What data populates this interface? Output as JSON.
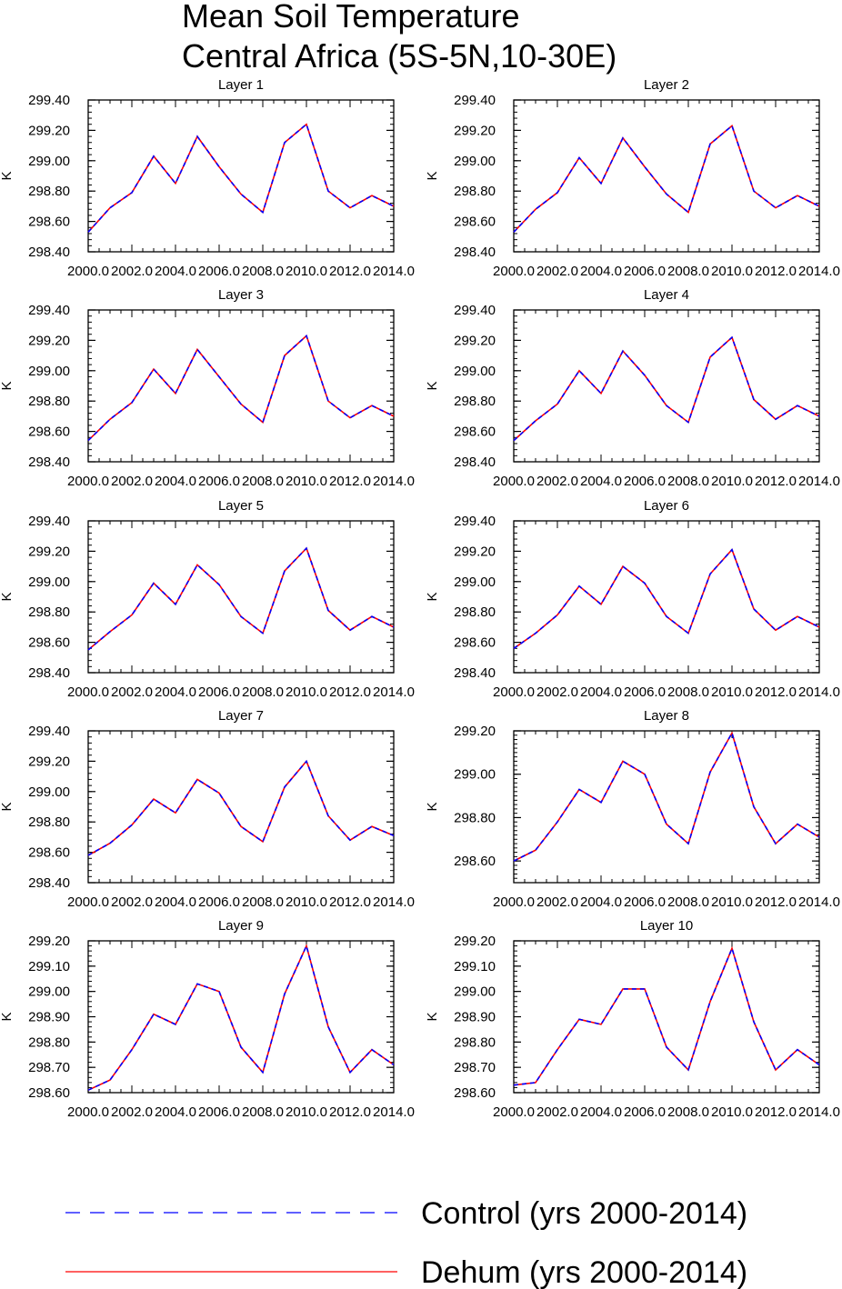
{
  "chart_data": {
    "type": "line",
    "title": [
      "Mean Soil Temperature",
      "Central Africa (5S-5N,10-30E)"
    ],
    "x": [
      2000,
      2001,
      2002,
      2003,
      2004,
      2005,
      2006,
      2007,
      2008,
      2009,
      2010,
      2011,
      2012,
      2013,
      2014
    ],
    "x_tick_labels": [
      "2000.0",
      "2002.0",
      "2004.0",
      "2006.0",
      "2008.0",
      "2010.0",
      "2012.0",
      "2014.0"
    ],
    "xlim": [
      2000,
      2014
    ],
    "series_styles": [
      {
        "name": "Control (yrs 2000-2014)",
        "color": "#0000ff",
        "dash": true
      },
      {
        "name": "Dehum (yrs 2000-2014)",
        "color": "#ff0000",
        "dash": false
      }
    ],
    "panels": [
      {
        "title": "Layer 1",
        "ylabel": "K",
        "ylim": [
          298.4,
          299.4
        ],
        "yticks": [
          "298.40",
          "298.60",
          "298.80",
          "299.00",
          "299.20",
          "299.40"
        ],
        "values": [
          298.53,
          298.69,
          298.79,
          299.03,
          298.85,
          299.16,
          298.96,
          298.78,
          298.66,
          299.12,
          299.24,
          298.8,
          298.69,
          298.77,
          298.7
        ]
      },
      {
        "title": "Layer 2",
        "ylabel": "K",
        "ylim": [
          298.4,
          299.4
        ],
        "yticks": [
          "298.40",
          "298.60",
          "298.80",
          "299.00",
          "299.20",
          "299.40"
        ],
        "values": [
          298.53,
          298.68,
          298.79,
          299.02,
          298.85,
          299.15,
          298.96,
          298.78,
          298.66,
          299.11,
          299.23,
          298.8,
          298.69,
          298.77,
          298.7
        ]
      },
      {
        "title": "Layer 3",
        "ylabel": "K",
        "ylim": [
          298.4,
          299.4
        ],
        "yticks": [
          "298.40",
          "298.60",
          "298.80",
          "299.00",
          "299.20",
          "299.40"
        ],
        "values": [
          298.54,
          298.68,
          298.79,
          299.01,
          298.85,
          299.14,
          298.96,
          298.78,
          298.66,
          299.1,
          299.23,
          298.8,
          298.69,
          298.77,
          298.7
        ]
      },
      {
        "title": "Layer 4",
        "ylabel": "K",
        "ylim": [
          298.4,
          299.4
        ],
        "yticks": [
          "298.40",
          "298.60",
          "298.80",
          "299.00",
          "299.20",
          "299.40"
        ],
        "values": [
          298.54,
          298.67,
          298.78,
          299.0,
          298.85,
          299.13,
          298.97,
          298.77,
          298.66,
          299.09,
          299.22,
          298.81,
          298.68,
          298.77,
          298.7
        ]
      },
      {
        "title": "Layer 5",
        "ylabel": "K",
        "ylim": [
          298.4,
          299.4
        ],
        "yticks": [
          "298.40",
          "298.60",
          "298.80",
          "299.00",
          "299.20",
          "299.40"
        ],
        "values": [
          298.55,
          298.67,
          298.78,
          298.99,
          298.85,
          299.11,
          298.98,
          298.77,
          298.66,
          299.07,
          299.22,
          298.81,
          298.68,
          298.77,
          298.7
        ]
      },
      {
        "title": "Layer 6",
        "ylabel": "K",
        "ylim": [
          298.4,
          299.4
        ],
        "yticks": [
          "298.40",
          "298.60",
          "298.80",
          "299.00",
          "299.20",
          "299.40"
        ],
        "values": [
          298.56,
          298.66,
          298.78,
          298.97,
          298.85,
          299.1,
          298.99,
          298.77,
          298.66,
          299.05,
          299.21,
          298.82,
          298.68,
          298.77,
          298.7
        ]
      },
      {
        "title": "Layer 7",
        "ylabel": "K",
        "ylim": [
          298.4,
          299.4
        ],
        "yticks": [
          "298.40",
          "298.60",
          "298.80",
          "299.00",
          "299.20",
          "299.40"
        ],
        "values": [
          298.58,
          298.66,
          298.78,
          298.95,
          298.86,
          299.08,
          298.99,
          298.77,
          298.67,
          299.03,
          299.2,
          298.84,
          298.68,
          298.77,
          298.71
        ]
      },
      {
        "title": "Layer 8",
        "ylabel": "K",
        "ylim": [
          298.5,
          299.2
        ],
        "yticks": [
          "298.60",
          "298.80",
          "299.00",
          "299.20"
        ],
        "values": [
          298.6,
          298.65,
          298.78,
          298.93,
          298.87,
          299.06,
          299.0,
          298.77,
          298.68,
          299.01,
          299.19,
          298.85,
          298.68,
          298.77,
          298.71
        ]
      },
      {
        "title": "Layer 9",
        "ylabel": "K",
        "ylim": [
          298.6,
          299.2
        ],
        "yticks": [
          "298.60",
          "298.70",
          "298.80",
          "298.90",
          "299.00",
          "299.10",
          "299.20"
        ],
        "values": [
          298.61,
          298.65,
          298.77,
          298.91,
          298.87,
          299.03,
          299.0,
          298.78,
          298.68,
          298.99,
          299.18,
          298.86,
          298.68,
          298.77,
          298.71
        ]
      },
      {
        "title": "Layer 10",
        "ylabel": "K",
        "ylim": [
          298.6,
          299.2
        ],
        "yticks": [
          "298.60",
          "298.70",
          "298.80",
          "298.90",
          "299.00",
          "299.10",
          "299.20"
        ],
        "values": [
          298.63,
          298.64,
          298.77,
          298.89,
          298.87,
          299.01,
          299.01,
          298.78,
          298.69,
          298.96,
          299.17,
          298.88,
          298.69,
          298.77,
          298.71
        ]
      }
    ],
    "legend": {
      "placement": "bottom",
      "entries": [
        "Control (yrs 2000-2014)",
        "Dehum (yrs 2000-2014)"
      ]
    }
  }
}
